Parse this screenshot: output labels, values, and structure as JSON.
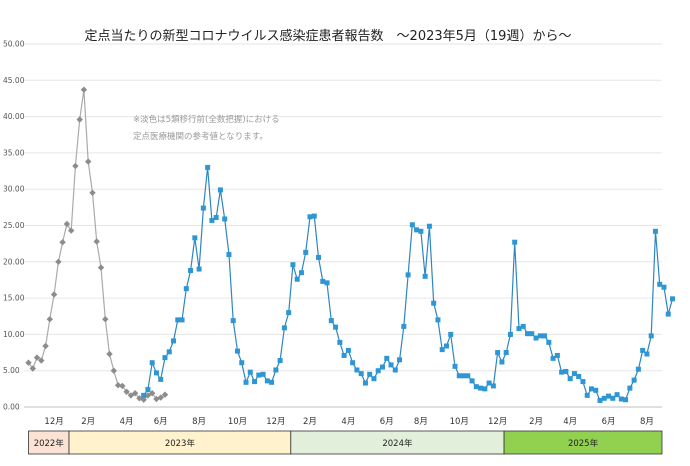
{
  "chart_data": {
    "type": "line",
    "title": "定点当たりの新型コロナウイルス感染症患者報告数　～2023年5月（19週）から～",
    "note": [
      "※淡色は5類移行前(全数把握)における",
      "定点医療機関の参考値となります。"
    ],
    "ylim": [
      0,
      50
    ],
    "yticks": [
      "0.00",
      "5.00",
      "10.00",
      "15.00",
      "20.00",
      "25.00",
      "30.00",
      "35.00",
      "40.00",
      "45.00",
      "50.00"
    ],
    "grid": true,
    "legend": "none",
    "x_month_labels": [
      {
        "label": "12月",
        "week": 6
      },
      {
        "label": "2月",
        "week": 14
      },
      {
        "label": "4月",
        "week": 23
      },
      {
        "label": "6月",
        "week": 31
      },
      {
        "label": "8月",
        "week": 40
      },
      {
        "label": "10月",
        "week": 49
      },
      {
        "label": "12月",
        "week": 58
      },
      {
        "label": "2月",
        "week": 66
      },
      {
        "label": "4月",
        "week": 75
      },
      {
        "label": "6月",
        "week": 84
      },
      {
        "label": "8月",
        "week": 92
      },
      {
        "label": "10月",
        "week": 101
      },
      {
        "label": "12月",
        "week": 110
      },
      {
        "label": "2月",
        "week": 119
      },
      {
        "label": "4月",
        "week": 127
      },
      {
        "label": "6月",
        "week": 136
      },
      {
        "label": "8月",
        "week": 145
      }
    ],
    "year_bands": [
      {
        "label": "2022年",
        "start_week": 0,
        "end_week": 9.5,
        "color": "#fbe2d5"
      },
      {
        "label": "2023年",
        "start_week": 9.5,
        "end_week": 61.5,
        "color": "#fff2cc"
      },
      {
        "label": "2024年",
        "start_week": 61.5,
        "end_week": 111.5,
        "color": "#e2efda"
      },
      {
        "label": "2025年",
        "start_week": 111.5,
        "end_week": 150.5,
        "color": "#92d050"
      }
    ],
    "series": [
      {
        "color": "#8c8c8c",
        "line_color": "#aaaaaa",
        "marker": "diamond",
        "start_week": 0,
        "values": [
          6.1,
          5.3,
          6.8,
          6.4,
          8.4,
          12.1,
          15.5,
          20.0,
          22.7,
          25.2,
          24.3,
          33.2,
          39.6,
          43.7,
          33.8,
          29.5,
          22.8,
          19.2,
          12.1,
          7.3,
          5.0,
          3.0,
          2.9,
          2.1,
          1.6,
          1.9,
          1.2,
          1.0,
          1.6,
          1.9,
          1.1,
          1.3,
          1.7
        ]
      },
      {
        "color": "#2e96d2",
        "line_color": "#2e86c1",
        "marker": "square",
        "start_week": 27,
        "values": [
          1.6,
          2.4,
          6.1,
          4.7,
          3.8,
          6.8,
          7.6,
          9.1,
          12.0,
          12.0,
          16.3,
          18.8,
          23.3,
          19.0,
          27.4,
          33.0,
          25.7,
          26.1,
          29.9,
          25.9,
          21.0,
          11.9,
          7.7,
          6.1,
          3.4,
          4.8,
          3.5,
          4.4,
          4.5,
          3.6,
          3.4,
          5.1,
          6.4,
          10.9,
          13.0,
          19.6,
          17.6,
          18.5,
          21.3,
          26.2,
          26.3,
          20.6,
          17.3,
          17.1,
          11.9,
          11.0,
          8.9,
          7.1,
          7.8,
          6.1,
          5.1,
          4.6,
          3.3,
          4.5,
          3.9,
          5.0,
          5.5,
          6.7,
          5.8,
          5.1,
          6.5,
          11.1,
          18.2,
          25.1,
          24.4,
          24.2,
          18.0,
          24.9,
          14.3,
          12.0,
          7.9,
          8.4,
          10.0,
          5.6,
          4.3,
          4.3,
          4.3,
          3.6,
          2.8,
          2.6,
          2.5,
          3.3,
          2.9,
          7.5,
          6.2,
          7.5,
          10.0,
          22.7,
          10.8,
          11.1,
          10.1,
          10.1,
          9.5,
          9.8,
          9.8,
          8.9,
          6.7,
          7.1,
          4.8,
          4.9,
          3.9,
          4.6,
          4.2,
          3.5,
          1.6,
          2.5,
          2.3,
          0.9,
          1.2,
          1.5,
          1.2,
          1.7,
          1.1,
          1.0,
          2.6,
          3.7,
          5.2,
          7.8,
          7.3,
          9.8,
          24.2,
          16.9,
          16.5,
          12.8,
          14.9
        ]
      }
    ]
  }
}
